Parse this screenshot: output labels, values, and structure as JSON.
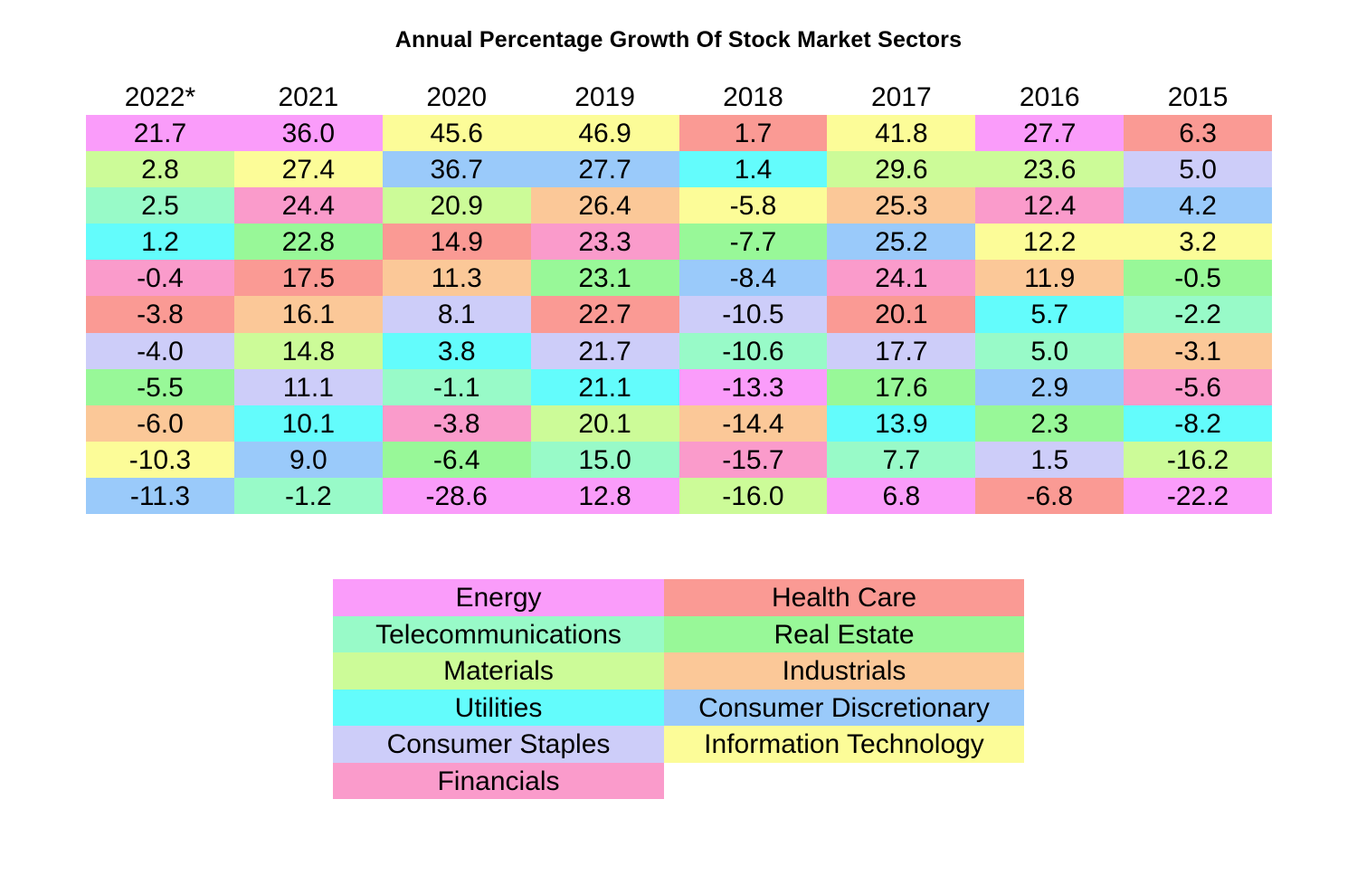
{
  "chart_data": {
    "type": "table",
    "title": "Annual Percentage Growth Of Stock Market Sectors",
    "years": [
      "2022*",
      "2021",
      "2020",
      "2019",
      "2018",
      "2017",
      "2016",
      "2015"
    ],
    "sector_colors": {
      "Energy": "#fa9cfa",
      "Telecommunications": "#98fac8",
      "Materials": "#ccfb98",
      "Utilities": "#63fcfc",
      "Consumer Staples": "#cdcdf9",
      "Financials": "#fa9bcb",
      "Health Care": "#fa9a94",
      "Real Estate": "#98f898",
      "Industrials": "#fbc898",
      "Consumer Discretionary": "#9acafa",
      "Information Technology": "#fcfc98"
    },
    "columns": [
      {
        "year": "2022*",
        "cells": [
          {
            "value": "21.7",
            "sector": "Energy"
          },
          {
            "value": "2.8",
            "sector": "Materials"
          },
          {
            "value": "2.5",
            "sector": "Telecommunications"
          },
          {
            "value": "1.2",
            "sector": "Utilities"
          },
          {
            "value": "-0.4",
            "sector": "Financials"
          },
          {
            "value": "-3.8",
            "sector": "Health Care"
          },
          {
            "value": "-4.0",
            "sector": "Consumer Staples"
          },
          {
            "value": "-5.5",
            "sector": "Real Estate"
          },
          {
            "value": "-6.0",
            "sector": "Industrials"
          },
          {
            "value": "-10.3",
            "sector": "Information Technology"
          },
          {
            "value": "-11.3",
            "sector": "Consumer Discretionary"
          }
        ]
      },
      {
        "year": "2021",
        "cells": [
          {
            "value": "36.0",
            "sector": "Energy"
          },
          {
            "value": "27.4",
            "sector": "Information Technology"
          },
          {
            "value": "24.4",
            "sector": "Financials"
          },
          {
            "value": "22.8",
            "sector": "Real Estate"
          },
          {
            "value": "17.5",
            "sector": "Health Care"
          },
          {
            "value": "16.1",
            "sector": "Industrials"
          },
          {
            "value": "14.8",
            "sector": "Materials"
          },
          {
            "value": "11.1",
            "sector": "Consumer Staples"
          },
          {
            "value": "10.1",
            "sector": "Utilities"
          },
          {
            "value": "9.0",
            "sector": "Consumer Discretionary"
          },
          {
            "value": "-1.2",
            "sector": "Telecommunications"
          }
        ]
      },
      {
        "year": "2020",
        "cells": [
          {
            "value": "45.6",
            "sector": "Information Technology"
          },
          {
            "value": "36.7",
            "sector": "Consumer Discretionary"
          },
          {
            "value": "20.9",
            "sector": "Materials"
          },
          {
            "value": "14.9",
            "sector": "Health Care"
          },
          {
            "value": "11.3",
            "sector": "Industrials"
          },
          {
            "value": "8.1",
            "sector": "Consumer Staples"
          },
          {
            "value": "3.8",
            "sector": "Utilities"
          },
          {
            "value": "-1.1",
            "sector": "Telecommunications"
          },
          {
            "value": "-3.8",
            "sector": "Financials"
          },
          {
            "value": "-6.4",
            "sector": "Real Estate"
          },
          {
            "value": "-28.6",
            "sector": "Energy"
          }
        ]
      },
      {
        "year": "2019",
        "cells": [
          {
            "value": "46.9",
            "sector": "Information Technology"
          },
          {
            "value": "27.7",
            "sector": "Consumer Discretionary"
          },
          {
            "value": "26.4",
            "sector": "Industrials"
          },
          {
            "value": "23.3",
            "sector": "Financials"
          },
          {
            "value": "23.1",
            "sector": "Real Estate"
          },
          {
            "value": "22.7",
            "sector": "Health Care"
          },
          {
            "value": "21.7",
            "sector": "Consumer Staples"
          },
          {
            "value": "21.1",
            "sector": "Utilities"
          },
          {
            "value": "20.1",
            "sector": "Materials"
          },
          {
            "value": "15.0",
            "sector": "Telecommunications"
          },
          {
            "value": "12.8",
            "sector": "Energy"
          }
        ]
      },
      {
        "year": "2018",
        "cells": [
          {
            "value": "1.7",
            "sector": "Health Care"
          },
          {
            "value": "1.4",
            "sector": "Utilities"
          },
          {
            "value": "-5.8",
            "sector": "Information Technology"
          },
          {
            "value": "-7.7",
            "sector": "Real Estate"
          },
          {
            "value": "-8.4",
            "sector": "Consumer Discretionary"
          },
          {
            "value": "-10.5",
            "sector": "Consumer Staples"
          },
          {
            "value": "-10.6",
            "sector": "Telecommunications"
          },
          {
            "value": "-13.3",
            "sector": "Energy"
          },
          {
            "value": "-14.4",
            "sector": "Industrials"
          },
          {
            "value": "-15.7",
            "sector": "Financials"
          },
          {
            "value": "-16.0",
            "sector": "Materials"
          }
        ]
      },
      {
        "year": "2017",
        "cells": [
          {
            "value": "41.8",
            "sector": "Information Technology"
          },
          {
            "value": "29.6",
            "sector": "Materials"
          },
          {
            "value": "25.3",
            "sector": "Industrials"
          },
          {
            "value": "25.2",
            "sector": "Consumer Discretionary"
          },
          {
            "value": "24.1",
            "sector": "Financials"
          },
          {
            "value": "20.1",
            "sector": "Health Care"
          },
          {
            "value": "17.7",
            "sector": "Consumer Staples"
          },
          {
            "value": "17.6",
            "sector": "Real Estate"
          },
          {
            "value": "13.9",
            "sector": "Utilities"
          },
          {
            "value": "7.7",
            "sector": "Telecommunications"
          },
          {
            "value": "6.8",
            "sector": "Energy"
          }
        ]
      },
      {
        "year": "2016",
        "cells": [
          {
            "value": "27.7",
            "sector": "Energy"
          },
          {
            "value": "23.6",
            "sector": "Materials"
          },
          {
            "value": "12.4",
            "sector": "Financials"
          },
          {
            "value": "12.2",
            "sector": "Information Technology"
          },
          {
            "value": "11.9",
            "sector": "Industrials"
          },
          {
            "value": "5.7",
            "sector": "Utilities"
          },
          {
            "value": "5.0",
            "sector": "Telecommunications"
          },
          {
            "value": "2.9",
            "sector": "Consumer Discretionary"
          },
          {
            "value": "2.3",
            "sector": "Real Estate"
          },
          {
            "value": "1.5",
            "sector": "Consumer Staples"
          },
          {
            "value": "-6.8",
            "sector": "Health Care"
          }
        ]
      },
      {
        "year": "2015",
        "cells": [
          {
            "value": "6.3",
            "sector": "Health Care"
          },
          {
            "value": "5.0",
            "sector": "Consumer Staples"
          },
          {
            "value": "4.2",
            "sector": "Consumer Discretionary"
          },
          {
            "value": "3.2",
            "sector": "Information Technology"
          },
          {
            "value": "-0.5",
            "sector": "Real Estate"
          },
          {
            "value": "-2.2",
            "sector": "Telecommunications"
          },
          {
            "value": "-3.1",
            "sector": "Industrials"
          },
          {
            "value": "-5.6",
            "sector": "Financials"
          },
          {
            "value": "-8.2",
            "sector": "Utilities"
          },
          {
            "value": "-16.2",
            "sector": "Materials"
          },
          {
            "value": "-22.2",
            "sector": "Energy"
          }
        ]
      }
    ],
    "legend": [
      "Energy",
      "Health Care",
      "Telecommunications",
      "Real Estate",
      "Materials",
      "Industrials",
      "Utilities",
      "Consumer Discretionary",
      "Consumer Staples",
      "Information Technology",
      "Financials"
    ]
  }
}
